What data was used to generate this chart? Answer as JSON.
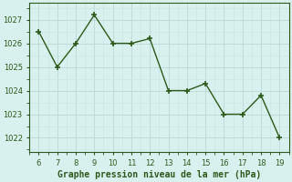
{
  "x": [
    6,
    7,
    8,
    9,
    10,
    11,
    12,
    13,
    14,
    15,
    16,
    17,
    18,
    19
  ],
  "y": [
    1026.5,
    1025.0,
    1026.0,
    1027.2,
    1026.0,
    1026.0,
    1026.2,
    1024.0,
    1024.0,
    1024.3,
    1023.0,
    1023.0,
    1023.8,
    1022.0
  ],
  "line_color": "#2d5a1b",
  "marker": "+",
  "marker_size": 5,
  "linewidth": 1.0,
  "bg_color": "#d8f0ee",
  "grid_major_color": "#b8d8d4",
  "grid_minor_color": "#c8e8e4",
  "xlabel": "Graphe pression niveau de la mer (hPa)",
  "xlabel_fontsize": 7,
  "xlabel_color": "#2d5a1b",
  "ylabel_ticks": [
    1022,
    1023,
    1024,
    1025,
    1026,
    1027
  ],
  "xlim": [
    5.5,
    19.5
  ],
  "ylim": [
    1021.4,
    1027.7
  ],
  "xticks": [
    6,
    7,
    8,
    9,
    10,
    11,
    12,
    13,
    14,
    15,
    16,
    17,
    18,
    19
  ],
  "tick_fontsize": 6.0,
  "tick_color": "#2d5a1b"
}
